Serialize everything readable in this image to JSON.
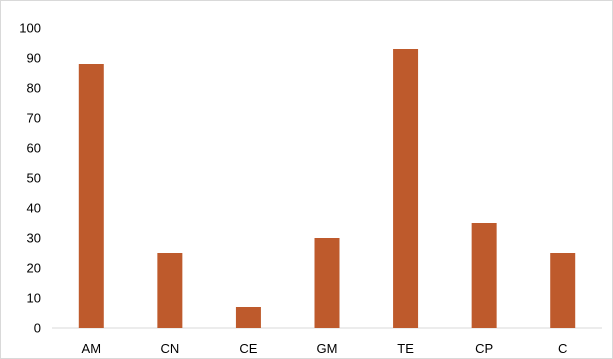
{
  "chart_data": {
    "type": "bar",
    "categories": [
      "AM",
      "CN",
      "CE",
      "GM",
      "TE",
      "CP",
      "C"
    ],
    "values": [
      88,
      25,
      7,
      30,
      93,
      35,
      25
    ],
    "ylim": [
      0,
      100
    ],
    "yticks": [
      0,
      10,
      20,
      30,
      40,
      50,
      60,
      70,
      80,
      90,
      100
    ],
    "bar_color": "#be5a2c",
    "axis_color": "#d9d9d9",
    "grid": false,
    "legend": "none"
  }
}
